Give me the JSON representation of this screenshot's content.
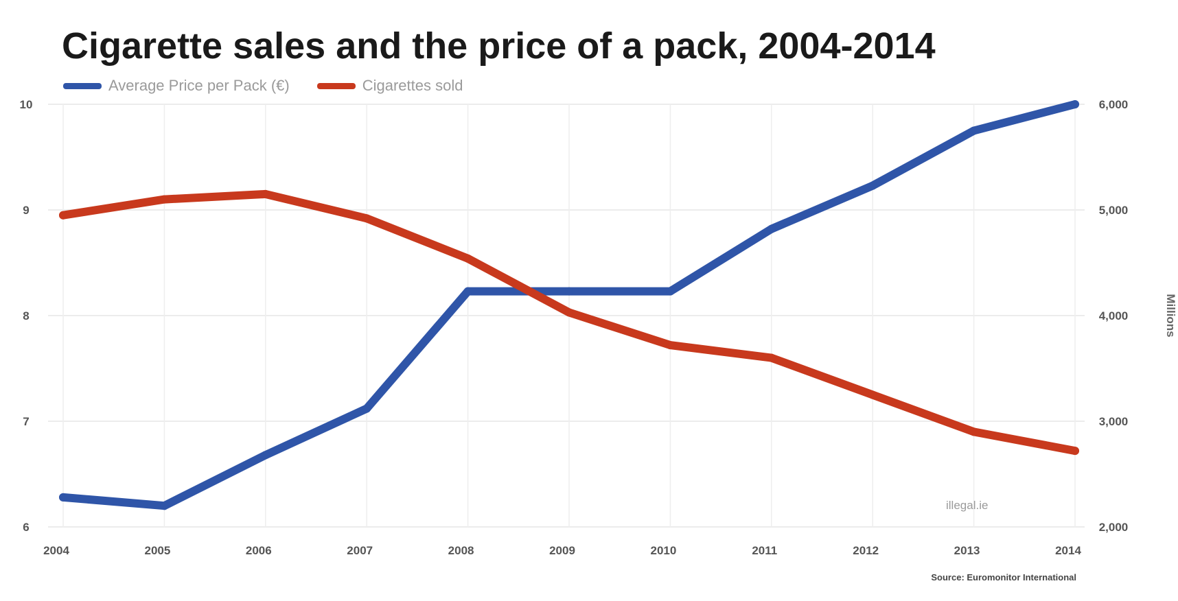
{
  "chart_data": {
    "type": "line",
    "title": "Cigarette sales and the price of a pack, 2004-2014",
    "x": [
      "2004",
      "2005",
      "2006",
      "2007",
      "2008",
      "2009",
      "2010",
      "2011",
      "2012",
      "2013",
      "2014"
    ],
    "xlim": [
      2004,
      2014
    ],
    "y_left": {
      "ylim": [
        6,
        10
      ],
      "ticks": [
        "6",
        "7",
        "8",
        "9",
        "10"
      ],
      "label": ""
    },
    "y_right": {
      "ylim": [
        2000,
        6000
      ],
      "ticks": [
        "2,000",
        "3,000",
        "4,000",
        "5,000",
        "6,000"
      ],
      "label": "Millions"
    },
    "series": [
      {
        "name": "Average Price per Pack (€)",
        "axis": "left",
        "color": "#2f55a8",
        "values": [
          6.28,
          6.2,
          6.68,
          7.12,
          8.23,
          8.23,
          8.23,
          8.82,
          9.23,
          9.75,
          10.0
        ]
      },
      {
        "name": "Cigarettes sold",
        "axis": "right",
        "color": "#c8391d",
        "values": [
          4950,
          5100,
          5150,
          4920,
          4540,
          4030,
          3720,
          3600,
          3250,
          2900,
          2720
        ]
      }
    ],
    "grid": true,
    "legend_position": "top-left",
    "credit": "illegal.ie",
    "source": "Source: Euromonitor International"
  }
}
